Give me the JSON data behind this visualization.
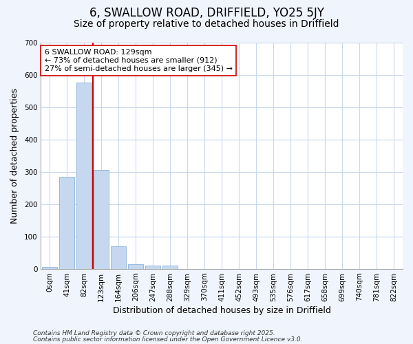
{
  "title1": "6, SWALLOW ROAD, DRIFFIELD, YO25 5JY",
  "title2": "Size of property relative to detached houses in Driffield",
  "xlabel": "Distribution of detached houses by size in Driffield",
  "ylabel": "Number of detached properties",
  "categories": [
    "0sqm",
    "41sqm",
    "82sqm",
    "123sqm",
    "164sqm",
    "206sqm",
    "247sqm",
    "288sqm",
    "329sqm",
    "370sqm",
    "411sqm",
    "452sqm",
    "493sqm",
    "535sqm",
    "576sqm",
    "617sqm",
    "658sqm",
    "699sqm",
    "740sqm",
    "781sqm",
    "822sqm"
  ],
  "values": [
    5,
    285,
    575,
    305,
    70,
    15,
    10,
    10,
    0,
    0,
    0,
    0,
    0,
    0,
    0,
    0,
    0,
    0,
    0,
    0,
    0
  ],
  "bar_color": "#c5d8f0",
  "bar_edge_color": "#8ab4d8",
  "vline_x": 2.5,
  "vline_color": "#cc0000",
  "ylim": [
    0,
    700
  ],
  "yticks": [
    0,
    100,
    200,
    300,
    400,
    500,
    600,
    700
  ],
  "fig_bg_color": "#f0f4fc",
  "plot_bg_color": "#ffffff",
  "grid_color": "#c8d8f0",
  "annotation_text": "6 SWALLOW ROAD: 129sqm\n← 73% of detached houses are smaller (912)\n27% of semi-detached houses are larger (345) →",
  "annotation_box_color": "#ffffff",
  "annotation_box_edge": "#cc0000",
  "footer1": "Contains HM Land Registry data © Crown copyright and database right 2025.",
  "footer2": "Contains public sector information licensed under the Open Government Licence v3.0.",
  "title1_fontsize": 12,
  "title2_fontsize": 10,
  "tick_fontsize": 7.5,
  "label_fontsize": 9,
  "annotation_fontsize": 8,
  "footer_fontsize": 6.5
}
